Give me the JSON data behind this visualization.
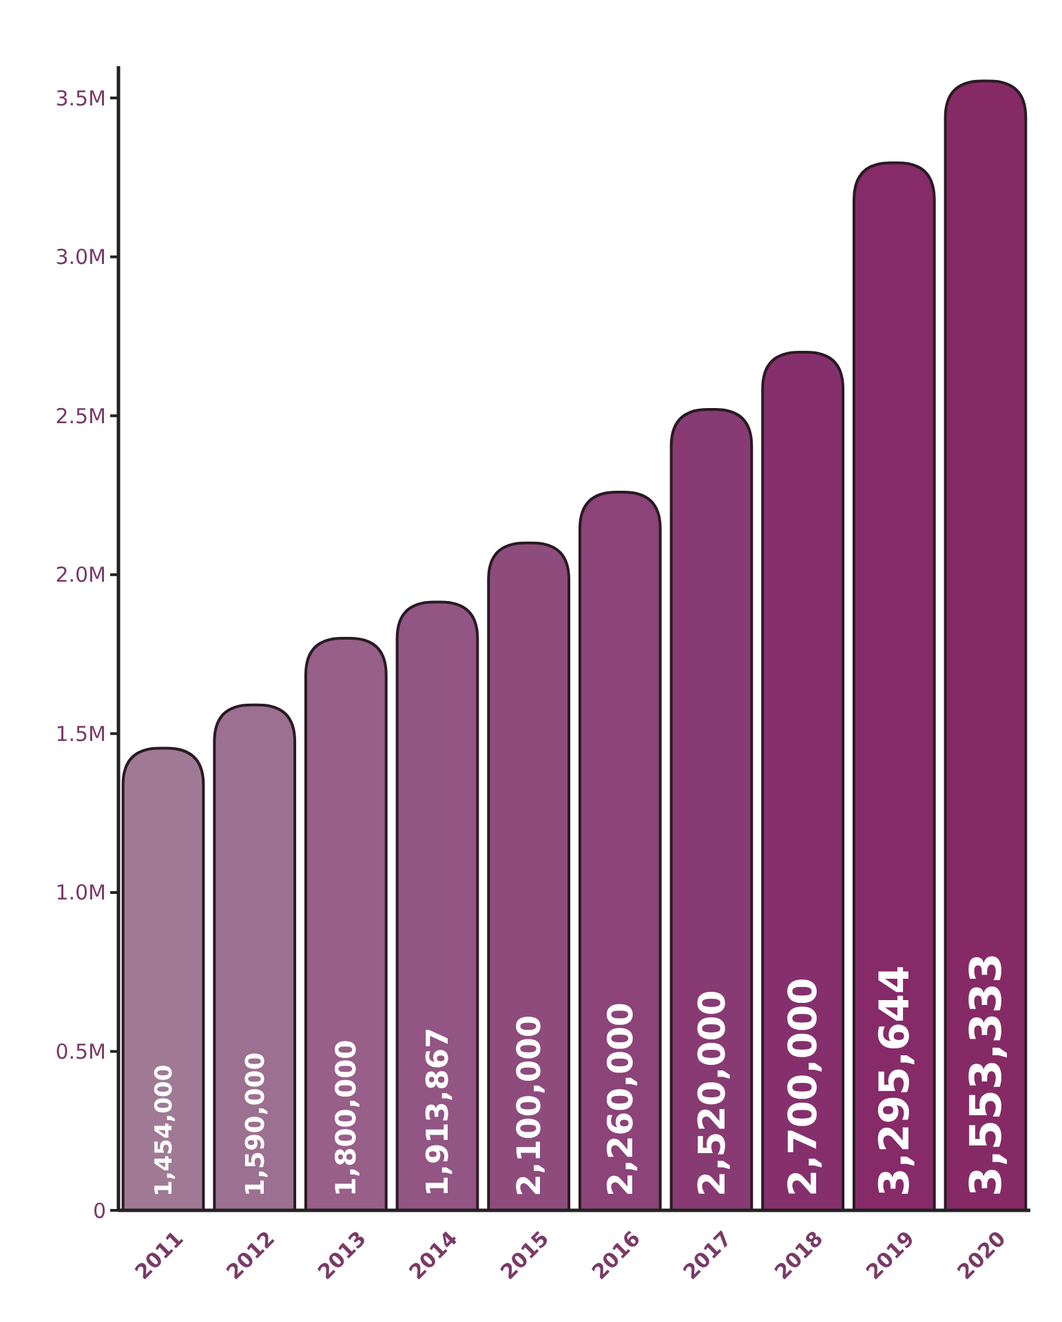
{
  "chart_data": {
    "type": "bar",
    "categories": [
      "2011",
      "2012",
      "2013",
      "2014",
      "2015",
      "2016",
      "2017",
      "2018",
      "2019",
      "2020"
    ],
    "values": [
      1454000,
      1590000,
      1800000,
      1913867,
      2100000,
      2260000,
      2520000,
      2700000,
      3295644,
      3553333
    ],
    "value_labels": [
      "1,454,000",
      "1,590,000",
      "1,800,000",
      "1,913,867",
      "2,100,000",
      "2,260,000",
      "2,520,000",
      "2,700,000",
      "3,295,644",
      "3,553,333"
    ],
    "colors": [
      "#a07a95",
      "#9c7090",
      "#985f88",
      "#935583",
      "#8e4c7c",
      "#8b4378",
      "#883a72",
      "#85306c",
      "#862a68",
      "#862a66"
    ],
    "ylim": [
      0,
      3600000
    ],
    "yticks": [
      {
        "value": 0,
        "label": "0"
      },
      {
        "value": 500000,
        "label": "0.5M"
      },
      {
        "value": 1000000,
        "label": "1.0M"
      },
      {
        "value": 1500000,
        "label": "1.5M"
      },
      {
        "value": 2000000,
        "label": "2.0M"
      },
      {
        "value": 2500000,
        "label": "2.5M"
      },
      {
        "value": 3000000,
        "label": "3.0M"
      },
      {
        "value": 3500000,
        "label": "3.5M"
      }
    ]
  }
}
